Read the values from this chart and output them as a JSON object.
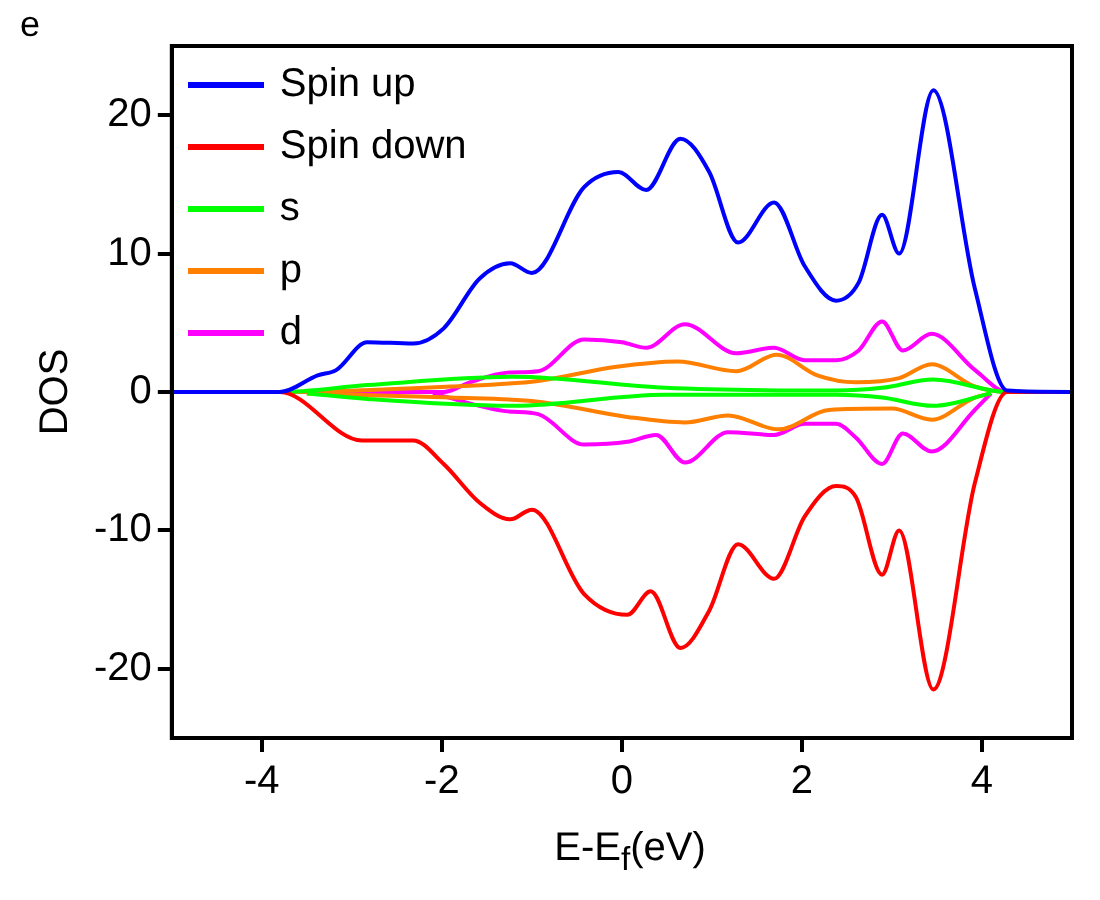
{
  "chart_data": {
    "type": "line",
    "xlabel": "E-E$_{f}$(eV)",
    "ylabel": "DOS",
    "annotations": [
      "e"
    ],
    "xlim": [
      -5,
      5
    ],
    "ylim": [
      -25,
      25
    ],
    "xticks": [
      -4,
      -2,
      0,
      2,
      4
    ],
    "yticks": [
      -20,
      -10,
      0,
      10,
      20
    ],
    "grid": false,
    "legend": "top left",
    "marker": "none",
    "line_style": "solid",
    "series": [
      {
        "name": "Spin up",
        "color": "#0000ff",
        "x": [
          -5,
          -3.8,
          -3.38,
          -3.17,
          -2.83,
          -2.32,
          -1.98,
          -1.58,
          -1.24,
          -1.0,
          -0.42,
          -0.04,
          0.27,
          0.65,
          0.97,
          1.29,
          1.69,
          2.03,
          2.38,
          2.63,
          2.89,
          3.08,
          3.46,
          3.92,
          4.28,
          5
        ],
        "values": [
          0,
          0,
          1.2,
          1.6,
          3.6,
          3.5,
          4.6,
          8.2,
          9.3,
          8.6,
          14.8,
          15.9,
          14.6,
          18.3,
          15.9,
          10.8,
          13.7,
          9.1,
          6.6,
          7.9,
          12.8,
          10.0,
          21.8,
          7.5,
          0.1,
          0
        ]
      },
      {
        "name": "Spin down",
        "color": "#ff0000",
        "x": [
          -5,
          -3.8,
          -2.89,
          -2.32,
          -1.98,
          -1.58,
          -1.24,
          -1.0,
          -0.42,
          0.06,
          0.32,
          0.65,
          0.97,
          1.29,
          1.69,
          2.03,
          2.38,
          2.6,
          2.89,
          3.08,
          3.46,
          3.92,
          4.28,
          5
        ],
        "values": [
          0,
          0,
          -3.5,
          -3.5,
          -5.2,
          -8.0,
          -9.2,
          -8.5,
          -14.6,
          -16.1,
          -14.4,
          -18.5,
          -15.8,
          -11.0,
          -13.5,
          -9.0,
          -6.8,
          -7.6,
          -13.2,
          -10.0,
          -21.5,
          -6.6,
          0,
          0
        ]
      },
      {
        "name": "s",
        "color": "#00ff00",
        "x": [
          -5,
          -3.8,
          -2.83,
          -1.2,
          0.48,
          2.38,
          2.89,
          3.46,
          4.28,
          5
        ],
        "values": [
          0,
          0,
          0.5,
          1.1,
          0.3,
          0.1,
          0.3,
          0.9,
          0,
          0
        ]
      },
      {
        "color": "#00ff00",
        "x": [
          -3.5,
          -2.83,
          -1.2,
          0.48,
          2.38,
          2.89,
          3.46,
          4.1
        ],
        "values": [
          -0.1,
          -0.5,
          -1.0,
          -0.2,
          -0.2,
          -0.4,
          -1.0,
          -0.1
        ]
      },
      {
        "name": "p",
        "color": "#ff8000",
        "x": [
          -5,
          -3.8,
          -1.9,
          -0.93,
          -0.08,
          0.62,
          1.27,
          1.72,
          2.17,
          2.6,
          3.08,
          3.44,
          3.92,
          4.28,
          5
        ],
        "values": [
          0,
          0,
          0.4,
          0.8,
          1.8,
          2.2,
          1.5,
          2.7,
          1.2,
          0.7,
          1.0,
          2.0,
          0.4,
          0,
          0
        ]
      },
      {
        "color": "#ff8000",
        "x": [
          -3.5,
          -1.9,
          -0.93,
          0.06,
          0.7,
          1.18,
          1.74,
          2.3,
          3.0,
          3.44,
          3.92,
          4.1
        ],
        "values": [
          -0.1,
          -0.4,
          -0.7,
          -1.8,
          -2.2,
          -1.7,
          -2.7,
          -1.3,
          -1.2,
          -2.0,
          -0.4,
          -0.1
        ]
      },
      {
        "name": "d",
        "color": "#ff00ff",
        "x": [
          -5,
          -3.8,
          -1.98,
          -1.69,
          -1.27,
          -0.93,
          -0.42,
          0,
          0.27,
          0.7,
          1.27,
          1.69,
          2.03,
          2.38,
          2.63,
          2.89,
          3.12,
          3.44,
          3.92,
          4.28,
          5
        ],
        "values": [
          0,
          0,
          0,
          0.7,
          1.4,
          1.5,
          3.8,
          3.6,
          3.2,
          4.9,
          2.8,
          3.2,
          2.3,
          2.3,
          3.0,
          5.1,
          3.0,
          4.2,
          1.6,
          0,
          0
        ]
      },
      {
        "color": "#ff00ff",
        "x": [
          -2.1,
          -1.27,
          -0.93,
          -0.42,
          0.06,
          0.38,
          0.7,
          1.18,
          1.69,
          2.03,
          2.38,
          2.6,
          2.89,
          3.12,
          3.44,
          3.92,
          4.1
        ],
        "values": [
          -0.1,
          -1.4,
          -1.6,
          -3.8,
          -3.6,
          -3.1,
          -5.1,
          -2.9,
          -3.1,
          -2.3,
          -2.3,
          -3.3,
          -5.2,
          -3.0,
          -4.3,
          -1.3,
          -0.1
        ]
      }
    ]
  }
}
